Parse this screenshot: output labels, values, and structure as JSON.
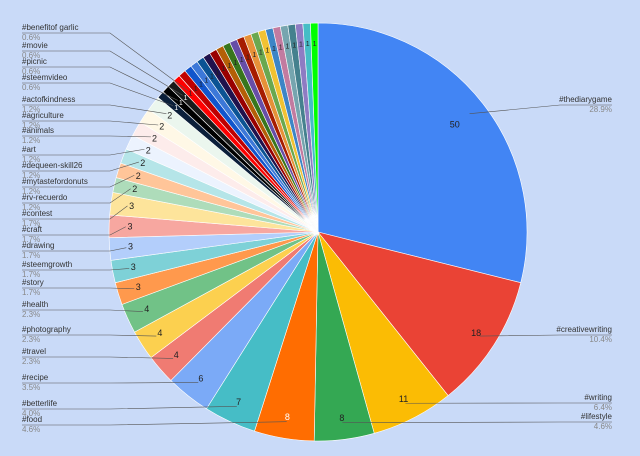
{
  "chart_data": {
    "type": "pie",
    "categories": [
      "#thediarygame",
      "#creativewriting",
      "#writing",
      "#lifestyle",
      "#food",
      "#betterlife",
      "#recipe",
      "#travel",
      "#photography",
      "#health",
      "#story",
      "#steemgrowth",
      "#drawing",
      "#craft",
      "#contest",
      "#rv-recuerdo",
      "#mytastefordonuts",
      "#dequeen-skill26",
      "#art",
      "#animals",
      "#agriculture",
      "#actofkindness",
      "#steemvideo",
      "#picnic",
      "#movie",
      "#benefitof garlic",
      null,
      null,
      null,
      null,
      null,
      null,
      null,
      null,
      null,
      null,
      null,
      null,
      null,
      null,
      null,
      null,
      null,
      null,
      null,
      null
    ],
    "values": [
      50,
      18,
      11,
      8,
      8,
      7,
      6,
      4,
      4,
      4,
      3,
      3,
      3,
      3,
      3,
      2,
      2,
      2,
      2,
      2,
      2,
      2,
      1,
      1,
      1,
      1,
      1,
      1,
      1,
      1,
      1,
      1,
      1,
      1,
      1,
      1,
      1,
      1,
      1,
      1,
      1,
      1,
      1,
      1,
      1,
      1
    ],
    "percent_labels": [
      "28.9%",
      "10.4%",
      "6.4%",
      "4.6%",
      "4.6%",
      "4.0%",
      "3.5%",
      "2.3%",
      "2.3%",
      "2.3%",
      "1.7%",
      "1.7%",
      "1.7%",
      "1.7%",
      "1.7%",
      "1.2%",
      "1.2%",
      "1.2%",
      "1.2%",
      "1.2%",
      "1.2%",
      "1.2%",
      "0.6%",
      "0.6%",
      "0.6%",
      "0.6%",
      null,
      null,
      null,
      null,
      null,
      null,
      null,
      null,
      null,
      null,
      null,
      null,
      null,
      null,
      null,
      null,
      null,
      null,
      null,
      null
    ],
    "colors": [
      "#4285f4",
      "#ea4335",
      "#fbbc04",
      "#34a853",
      "#ff6d01",
      "#46bdc6",
      "#7baaf7",
      "#f07b72",
      "#fcd04f",
      "#71c287",
      "#ff994d",
      "#7ed1d7",
      "#b3cefb",
      "#f7a7a0",
      "#fde49b",
      "#aedcba",
      "#ffc599",
      "#b5e5e8",
      "#ecf3fe",
      "#fdeceb",
      "#fff8e6",
      "#ebf6ee",
      "#0b1f3a",
      "#000000",
      "#1a1a1a",
      "#ff0000",
      "#c00000",
      "#1155cc",
      "#3c78d8",
      "#0b5394",
      "#20124d",
      "#990000",
      "#b45f06",
      "#38761d",
      "#674ea7",
      "#a61c00",
      "#e69138",
      "#6aa84f",
      "#f1c232",
      "#3d85c6",
      "#c27ba0",
      "#76a5af",
      "#45818e",
      "#8e7cc3",
      "#46bdc6",
      "#00ff00"
    ]
  }
}
